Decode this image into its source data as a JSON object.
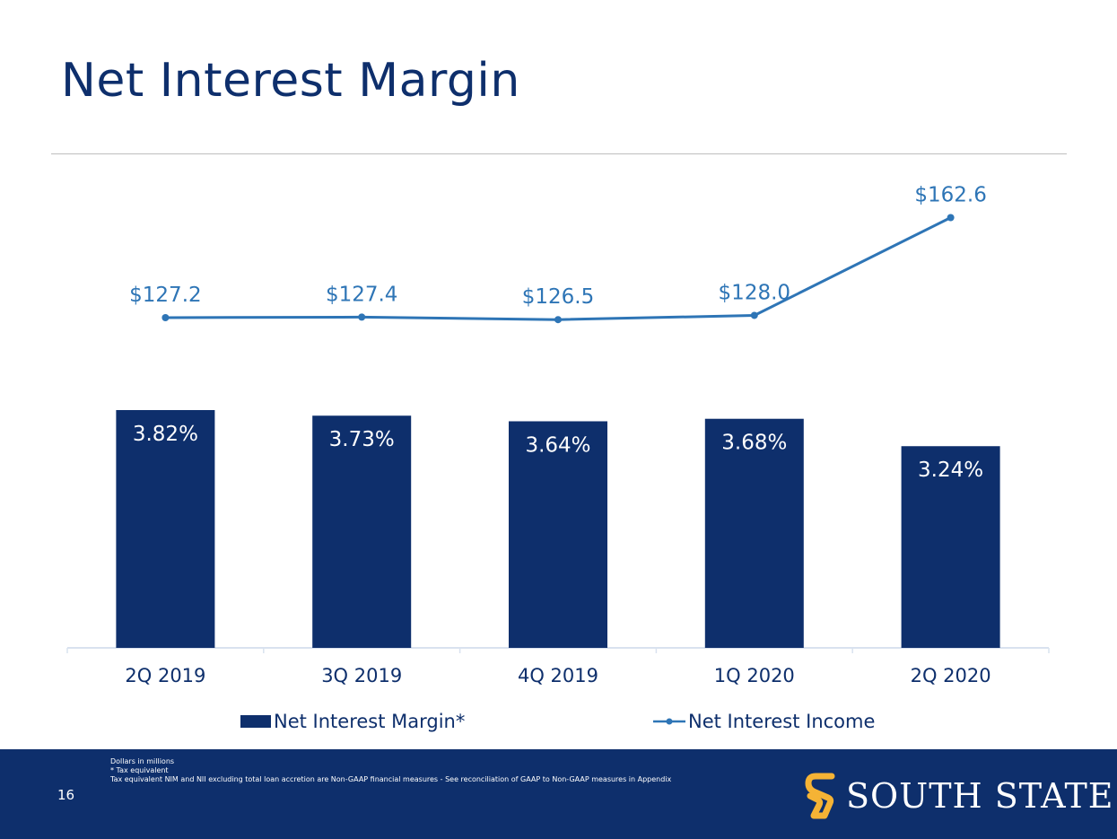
{
  "slide": {
    "title": "Net Interest Margin",
    "page_number": "16"
  },
  "chart_data": {
    "type": "bar",
    "categories": [
      "2Q 2019",
      "3Q 2019",
      "4Q 2019",
      "1Q 2020",
      "2Q 2020"
    ],
    "series": [
      {
        "name": "Net Interest Margin*",
        "type": "bar",
        "values": [
          3.82,
          3.73,
          3.64,
          3.68,
          3.24
        ],
        "labels": [
          "3.82%",
          "3.73%",
          "3.64%",
          "3.68%",
          "3.24%"
        ],
        "color": "#0e2f6c"
      },
      {
        "name": "Net Interest Income",
        "type": "line",
        "values": [
          127.2,
          127.4,
          126.5,
          128.0,
          162.6
        ],
        "labels": [
          "$127.2",
          "$127.4",
          "$126.5",
          "$128.0",
          "$162.6"
        ],
        "color": "#2e75b6"
      }
    ],
    "legend_position": "bottom",
    "grid": false,
    "bar_label_color": "#ffffff",
    "axis_color": "#d9e2ef"
  },
  "footer": {
    "notes": [
      "Dollars in millions",
      "* Tax equivalent",
      "Tax equivalent NIM and NII excluding total loan accretion are Non-GAAP financial measures - See reconciliation of GAAP to Non-GAAP measures in Appendix"
    ],
    "logo_text": "SOUTH STATE",
    "background_color": "#0e2f6c",
    "logo_mark_color": "#f5b335"
  }
}
